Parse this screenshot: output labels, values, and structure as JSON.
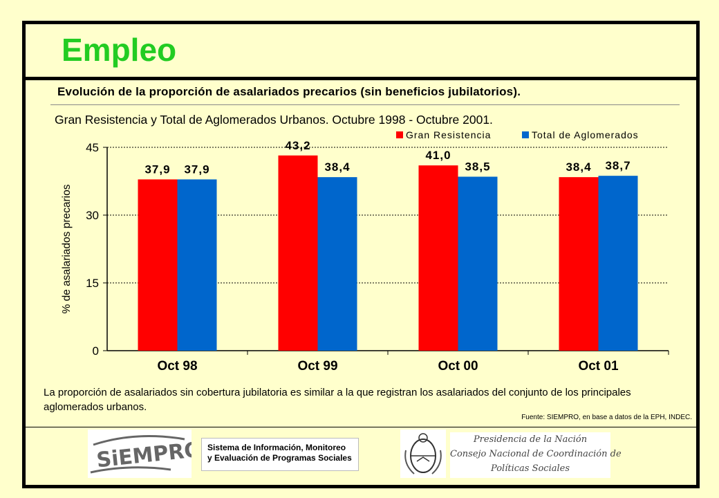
{
  "header": {
    "title": "Empleo",
    "heading": "Evolución de la proporción de asalariados precarios (sin beneficios jubilatorios).",
    "subtitle": "Gran Resistencia y Total de Aglomerados Urbanos. Octubre 1998 - Octubre 2001."
  },
  "colors": {
    "gran_resistencia": "#ff0000",
    "total_aglomerados": "#0066cc",
    "title": "#22cc22",
    "background": "#ffffcc"
  },
  "chart_data": {
    "type": "bar",
    "categories": [
      "Oct 98",
      "Oct 99",
      "Oct 00",
      "Oct 01"
    ],
    "series": [
      {
        "name": "Gran Resistencia",
        "values": [
          37.9,
          43.2,
          41.0,
          38.4
        ],
        "labels": [
          "37,9",
          "43,2",
          "41,0",
          "38,4"
        ]
      },
      {
        "name": "Total de Aglomerados",
        "values": [
          37.9,
          38.4,
          38.5,
          38.7
        ],
        "labels": [
          "37,9",
          "38,4",
          "38,5",
          "38,7"
        ]
      }
    ],
    "ylabel": "% de asalariados precarios",
    "xlabel": "",
    "ylim": [
      0,
      45
    ],
    "yticks": [
      0,
      15,
      30,
      45
    ],
    "grid": true,
    "legend": "top-right"
  },
  "footer": {
    "note": "La proporción de asalariados sin cobertura jubilatoria es similar a la que registran los asalariados del conjunto de los principales aglomerados urbanos.",
    "source": "Fuente: SIEMPRO, en base a datos de la EPH, INDEC."
  },
  "logos": {
    "siempro_text": "SiEMPRO",
    "sistema_line1": "Sistema de Información, Monitoreo",
    "sistema_line2": "y Evaluación de Programas Sociales",
    "presidencia_line1": "Presidencia de la Nación",
    "presidencia_line2": "Consejo Nacional de Coordinación de",
    "presidencia_line3": "Políticas Sociales"
  }
}
